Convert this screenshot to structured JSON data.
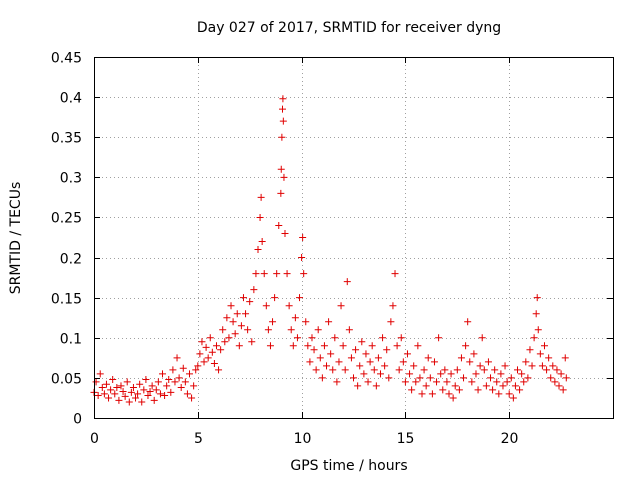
{
  "chart_data": {
    "type": "scatter",
    "title": "Day 027 of 2017, SRMTID for receiver dyng",
    "xlabel": "GPS time / hours",
    "ylabel": "SRMTID / TECUs",
    "xlim": [
      0,
      25
    ],
    "ylim": [
      0,
      0.45
    ],
    "xticks": [
      0,
      5,
      10,
      15,
      20
    ],
    "xtick_labels": [
      "0",
      "5",
      "10",
      "15",
      "20"
    ],
    "yticks": [
      0,
      0.05,
      0.1,
      0.15,
      0.2,
      0.25,
      0.3,
      0.35,
      0.4,
      0.45
    ],
    "ytick_labels": [
      "0",
      "0.05",
      "0.1",
      "0.15",
      "0.2",
      "0.25",
      "0.3",
      "0.35",
      "0.4",
      "0.45"
    ],
    "grid": true,
    "marker": "+",
    "marker_color": "#e00000",
    "series": [
      {
        "name": "SRMTID",
        "points": [
          [
            0.0,
            0.032
          ],
          [
            0.1,
            0.045
          ],
          [
            0.2,
            0.028
          ],
          [
            0.3,
            0.055
          ],
          [
            0.4,
            0.038
          ],
          [
            0.5,
            0.03
          ],
          [
            0.6,
            0.042
          ],
          [
            0.7,
            0.025
          ],
          [
            0.8,
            0.035
          ],
          [
            0.9,
            0.048
          ],
          [
            1.0,
            0.03
          ],
          [
            1.1,
            0.038
          ],
          [
            1.2,
            0.022
          ],
          [
            1.3,
            0.04
          ],
          [
            1.4,
            0.033
          ],
          [
            1.5,
            0.027
          ],
          [
            1.6,
            0.045
          ],
          [
            1.7,
            0.02
          ],
          [
            1.8,
            0.032
          ],
          [
            1.9,
            0.038
          ],
          [
            2.0,
            0.025
          ],
          [
            2.1,
            0.03
          ],
          [
            2.2,
            0.042
          ],
          [
            2.3,
            0.02
          ],
          [
            2.4,
            0.035
          ],
          [
            2.5,
            0.048
          ],
          [
            2.6,
            0.028
          ],
          [
            2.7,
            0.033
          ],
          [
            2.8,
            0.04
          ],
          [
            2.9,
            0.022
          ],
          [
            3.0,
            0.035
          ],
          [
            3.1,
            0.045
          ],
          [
            3.2,
            0.03
          ],
          [
            3.3,
            0.055
          ],
          [
            3.4,
            0.028
          ],
          [
            3.5,
            0.04
          ],
          [
            3.6,
            0.048
          ],
          [
            3.7,
            0.032
          ],
          [
            3.8,
            0.06
          ],
          [
            3.9,
            0.045
          ],
          [
            4.0,
            0.075
          ],
          [
            4.1,
            0.05
          ],
          [
            4.2,
            0.038
          ],
          [
            4.3,
            0.062
          ],
          [
            4.4,
            0.045
          ],
          [
            4.5,
            0.03
          ],
          [
            4.6,
            0.055
          ],
          [
            4.7,
            0.025
          ],
          [
            4.8,
            0.04
          ],
          [
            4.9,
            0.06
          ],
          [
            5.0,
            0.065
          ],
          [
            5.1,
            0.08
          ],
          [
            5.2,
            0.095
          ],
          [
            5.3,
            0.07
          ],
          [
            5.4,
            0.088
          ],
          [
            5.5,
            0.075
          ],
          [
            5.6,
            0.1
          ],
          [
            5.7,
            0.082
          ],
          [
            5.8,
            0.068
          ],
          [
            5.9,
            0.09
          ],
          [
            6.0,
            0.06
          ],
          [
            6.1,
            0.085
          ],
          [
            6.2,
            0.11
          ],
          [
            6.3,
            0.095
          ],
          [
            6.4,
            0.125
          ],
          [
            6.5,
            0.1
          ],
          [
            6.6,
            0.14
          ],
          [
            6.7,
            0.12
          ],
          [
            6.8,
            0.105
          ],
          [
            6.9,
            0.13
          ],
          [
            7.0,
            0.09
          ],
          [
            7.1,
            0.115
          ],
          [
            7.2,
            0.15
          ],
          [
            7.3,
            0.13
          ],
          [
            7.4,
            0.11
          ],
          [
            7.5,
            0.145
          ],
          [
            7.6,
            0.095
          ],
          [
            7.7,
            0.16
          ],
          [
            7.8,
            0.18
          ],
          [
            7.9,
            0.21
          ],
          [
            8.0,
            0.25
          ],
          [
            8.05,
            0.275
          ],
          [
            8.1,
            0.22
          ],
          [
            8.2,
            0.18
          ],
          [
            8.3,
            0.14
          ],
          [
            8.4,
            0.11
          ],
          [
            8.5,
            0.09
          ],
          [
            8.6,
            0.12
          ],
          [
            8.7,
            0.15
          ],
          [
            8.8,
            0.18
          ],
          [
            8.9,
            0.24
          ],
          [
            9.0,
            0.28
          ],
          [
            9.02,
            0.31
          ],
          [
            9.05,
            0.35
          ],
          [
            9.08,
            0.385
          ],
          [
            9.1,
            0.398
          ],
          [
            9.12,
            0.37
          ],
          [
            9.15,
            0.3
          ],
          [
            9.2,
            0.23
          ],
          [
            9.3,
            0.18
          ],
          [
            9.4,
            0.14
          ],
          [
            9.5,
            0.11
          ],
          [
            9.6,
            0.09
          ],
          [
            9.7,
            0.125
          ],
          [
            9.8,
            0.1
          ],
          [
            9.9,
            0.15
          ],
          [
            10.0,
            0.2
          ],
          [
            10.05,
            0.225
          ],
          [
            10.1,
            0.18
          ],
          [
            10.2,
            0.12
          ],
          [
            10.3,
            0.09
          ],
          [
            10.4,
            0.07
          ],
          [
            10.5,
            0.1
          ],
          [
            10.6,
            0.085
          ],
          [
            10.7,
            0.06
          ],
          [
            10.8,
            0.11
          ],
          [
            10.9,
            0.075
          ],
          [
            11.0,
            0.05
          ],
          [
            11.1,
            0.09
          ],
          [
            11.2,
            0.065
          ],
          [
            11.3,
            0.12
          ],
          [
            11.4,
            0.08
          ],
          [
            11.5,
            0.06
          ],
          [
            11.6,
            0.1
          ],
          [
            11.7,
            0.045
          ],
          [
            11.8,
            0.07
          ],
          [
            11.9,
            0.14
          ],
          [
            12.0,
            0.09
          ],
          [
            12.1,
            0.06
          ],
          [
            12.2,
            0.17
          ],
          [
            12.3,
            0.11
          ],
          [
            12.4,
            0.075
          ],
          [
            12.5,
            0.05
          ],
          [
            12.6,
            0.085
          ],
          [
            12.7,
            0.04
          ],
          [
            12.8,
            0.065
          ],
          [
            12.9,
            0.095
          ],
          [
            13.0,
            0.055
          ],
          [
            13.1,
            0.08
          ],
          [
            13.2,
            0.045
          ],
          [
            13.3,
            0.07
          ],
          [
            13.4,
            0.09
          ],
          [
            13.5,
            0.06
          ],
          [
            13.6,
            0.04
          ],
          [
            13.7,
            0.075
          ],
          [
            13.8,
            0.055
          ],
          [
            13.9,
            0.1
          ],
          [
            14.0,
            0.065
          ],
          [
            14.1,
            0.085
          ],
          [
            14.2,
            0.05
          ],
          [
            14.3,
            0.12
          ],
          [
            14.4,
            0.14
          ],
          [
            14.5,
            0.18
          ],
          [
            14.6,
            0.09
          ],
          [
            14.7,
            0.06
          ],
          [
            14.8,
            0.1
          ],
          [
            14.9,
            0.07
          ],
          [
            15.0,
            0.045
          ],
          [
            15.1,
            0.08
          ],
          [
            15.2,
            0.055
          ],
          [
            15.3,
            0.035
          ],
          [
            15.4,
            0.065
          ],
          [
            15.5,
            0.045
          ],
          [
            15.6,
            0.09
          ],
          [
            15.7,
            0.05
          ],
          [
            15.8,
            0.03
          ],
          [
            15.9,
            0.06
          ],
          [
            16.0,
            0.04
          ],
          [
            16.1,
            0.075
          ],
          [
            16.2,
            0.05
          ],
          [
            16.3,
            0.03
          ],
          [
            16.4,
            0.07
          ],
          [
            16.5,
            0.045
          ],
          [
            16.6,
            0.1
          ],
          [
            16.7,
            0.055
          ],
          [
            16.8,
            0.035
          ],
          [
            16.9,
            0.06
          ],
          [
            17.0,
            0.045
          ],
          [
            17.1,
            0.03
          ],
          [
            17.2,
            0.055
          ],
          [
            17.3,
            0.025
          ],
          [
            17.4,
            0.04
          ],
          [
            17.5,
            0.06
          ],
          [
            17.6,
            0.035
          ],
          [
            17.7,
            0.075
          ],
          [
            17.8,
            0.05
          ],
          [
            17.9,
            0.09
          ],
          [
            18.0,
            0.12
          ],
          [
            18.1,
            0.07
          ],
          [
            18.2,
            0.045
          ],
          [
            18.3,
            0.08
          ],
          [
            18.4,
            0.055
          ],
          [
            18.5,
            0.035
          ],
          [
            18.6,
            0.065
          ],
          [
            18.7,
            0.1
          ],
          [
            18.8,
            0.06
          ],
          [
            18.9,
            0.04
          ],
          [
            19.0,
            0.07
          ],
          [
            19.1,
            0.05
          ],
          [
            19.2,
            0.035
          ],
          [
            19.3,
            0.06
          ],
          [
            19.4,
            0.045
          ],
          [
            19.5,
            0.03
          ],
          [
            19.6,
            0.055
          ],
          [
            19.7,
            0.04
          ],
          [
            19.8,
            0.065
          ],
          [
            19.9,
            0.045
          ],
          [
            20.0,
            0.03
          ],
          [
            20.1,
            0.05
          ],
          [
            20.2,
            0.025
          ],
          [
            20.3,
            0.04
          ],
          [
            20.4,
            0.06
          ],
          [
            20.5,
            0.035
          ],
          [
            20.6,
            0.055
          ],
          [
            20.7,
            0.045
          ],
          [
            20.8,
            0.07
          ],
          [
            20.9,
            0.05
          ],
          [
            21.0,
            0.085
          ],
          [
            21.1,
            0.065
          ],
          [
            21.2,
            0.1
          ],
          [
            21.3,
            0.13
          ],
          [
            21.35,
            0.15
          ],
          [
            21.4,
            0.11
          ],
          [
            21.5,
            0.08
          ],
          [
            21.6,
            0.065
          ],
          [
            21.7,
            0.09
          ],
          [
            21.8,
            0.06
          ],
          [
            21.9,
            0.075
          ],
          [
            22.0,
            0.05
          ],
          [
            22.1,
            0.065
          ],
          [
            22.2,
            0.045
          ],
          [
            22.3,
            0.06
          ],
          [
            22.4,
            0.04
          ],
          [
            22.5,
            0.055
          ],
          [
            22.6,
            0.035
          ],
          [
            22.7,
            0.075
          ],
          [
            22.75,
            0.05
          ]
        ]
      }
    ]
  }
}
